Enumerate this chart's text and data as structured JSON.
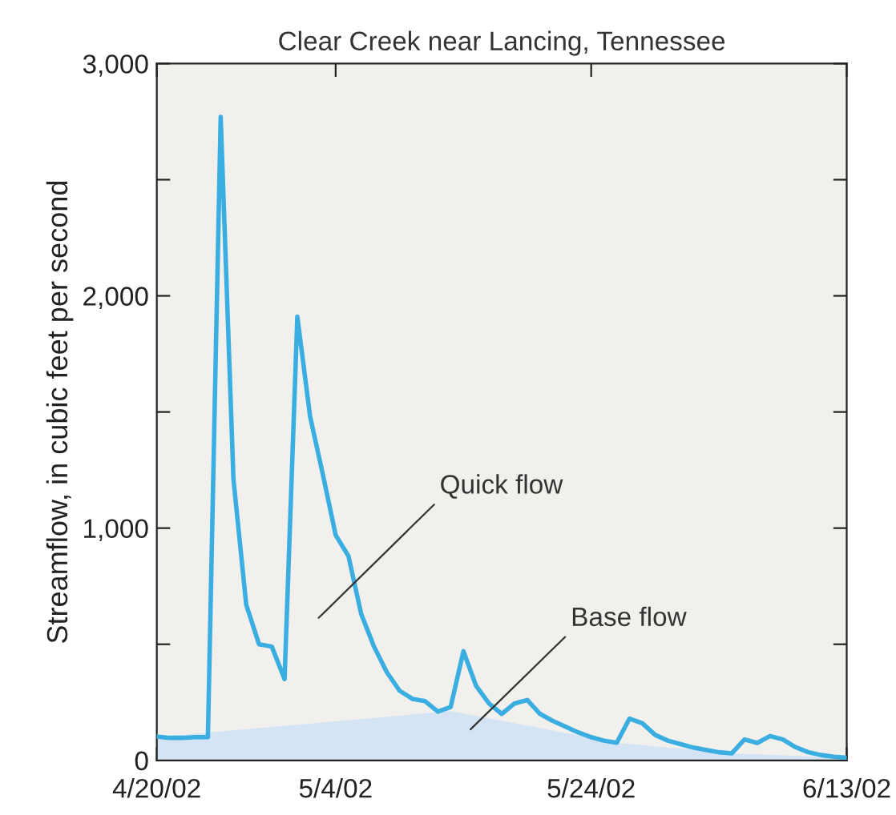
{
  "chart_data": {
    "type": "line",
    "title": "Clear Creek near Lancing, Tennessee",
    "ylabel": "Streamflow, in cubic feet per second",
    "x": [
      "2002-04-20",
      "2002-04-21",
      "2002-04-22",
      "2002-04-23",
      "2002-04-24",
      "2002-04-25",
      "2002-04-26",
      "2002-04-27",
      "2002-04-28",
      "2002-04-29",
      "2002-04-30",
      "2002-05-01",
      "2002-05-02",
      "2002-05-03",
      "2002-05-04",
      "2002-05-05",
      "2002-05-06",
      "2002-05-07",
      "2002-05-08",
      "2002-05-09",
      "2002-05-10",
      "2002-05-11",
      "2002-05-12",
      "2002-05-13",
      "2002-05-14",
      "2002-05-15",
      "2002-05-16",
      "2002-05-17",
      "2002-05-18",
      "2002-05-19",
      "2002-05-20",
      "2002-05-21",
      "2002-05-22",
      "2002-05-23",
      "2002-05-24",
      "2002-05-25",
      "2002-05-26",
      "2002-05-27",
      "2002-05-28",
      "2002-05-29",
      "2002-05-30",
      "2002-05-31",
      "2002-06-01",
      "2002-06-02",
      "2002-06-03",
      "2002-06-04",
      "2002-06-05",
      "2002-06-06",
      "2002-06-07",
      "2002-06-08",
      "2002-06-09",
      "2002-06-10",
      "2002-06-11",
      "2002-06-12",
      "2002-06-13"
    ],
    "series": [
      {
        "type": "area",
        "color": "#d4e4f4",
        "x": [
          "2002-04-20",
          "2002-05-13",
          "2002-05-18",
          "2002-05-26",
          "2002-06-04",
          "2002-06-13"
        ],
        "values": [
          100,
          212,
          160,
          76,
          30,
          11
        ]
      },
      {
        "color": "#3aaee0",
        "values": [
          103,
          97,
          97,
          100,
          100,
          2770,
          1210,
          670,
          500,
          490,
          350,
          1910,
          1480,
          1230,
          970,
          880,
          630,
          490,
          380,
          300,
          265,
          255,
          210,
          230,
          470,
          320,
          245,
          200,
          245,
          260,
          200,
          170,
          145,
          120,
          100,
          85,
          76,
          180,
          160,
          110,
          85,
          70,
          55,
          45,
          35,
          30,
          90,
          75,
          105,
          90,
          57,
          35,
          23,
          16,
          11
        ]
      }
    ],
    "xlim": [
      "2002-04-20",
      "2002-06-13"
    ],
    "xticks": [
      {
        "value": "2002-04-20",
        "label": "4/20/02"
      },
      {
        "value": "2002-05-04",
        "label": "5/4/02"
      },
      {
        "value": "2002-05-24",
        "label": "5/24/02"
      },
      {
        "value": "2002-06-13",
        "label": "6/13/02"
      }
    ],
    "ylim": [
      0,
      3000
    ],
    "yticks": [
      {
        "value": 0,
        "label": "0"
      },
      {
        "value": 500,
        "label": null
      },
      {
        "value": 1000,
        "label": "1,000"
      },
      {
        "value": 1500,
        "label": null
      },
      {
        "value": 2000,
        "label": "2,000"
      },
      {
        "value": 2500,
        "label": null
      },
      {
        "value": 3000,
        "label": "3,000"
      }
    ],
    "annotations": [
      "Quick flow",
      "Base flow"
    ],
    "grid": false,
    "legend": false
  }
}
